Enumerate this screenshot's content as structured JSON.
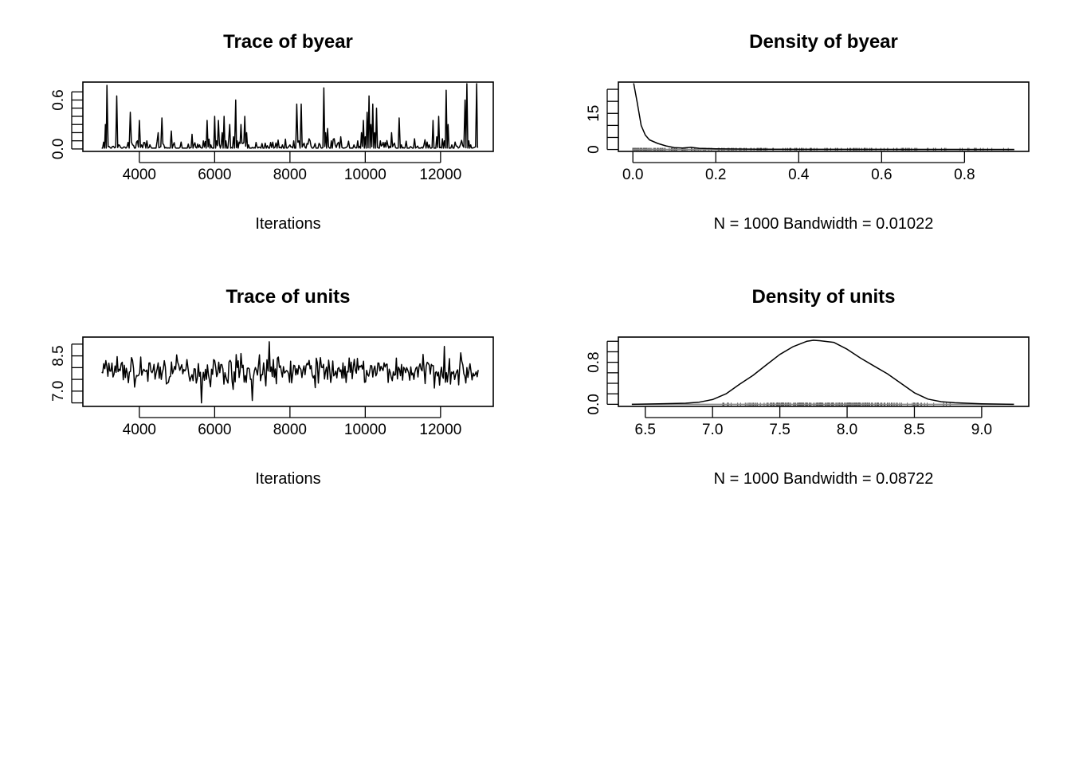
{
  "chart_data": [
    {
      "type": "line",
      "id": "trace-byear",
      "title": "Trace of byear",
      "xlabel": "Iterations",
      "ylabel": "",
      "xlim": [
        2500,
        13400
      ],
      "ylim": [
        -0.03,
        0.82
      ],
      "xticks": [
        4000,
        6000,
        8000,
        10000,
        12000
      ],
      "xtick_labels": [
        "4000",
        "6000",
        "8000",
        "10000",
        "12000"
      ],
      "yticks": [
        0.0,
        0.1,
        0.2,
        0.3,
        0.4,
        0.5,
        0.6,
        0.7
      ],
      "ytick_labels": [
        "0.0",
        "",
        "",
        "",
        "",
        "",
        "0.6",
        ""
      ],
      "grid": false,
      "series": [
        {
          "x": [
            3000,
            3100,
            3140,
            3200,
            3400,
            3450,
            3500,
            3700,
            3760,
            3820,
            3950,
            4000,
            4060,
            4200,
            4260,
            4300,
            4500,
            4540,
            4600,
            4650,
            4700,
            4850,
            4900,
            4950,
            5000,
            5300,
            5400,
            5450,
            5500,
            5600,
            5700,
            5800,
            5850,
            5900,
            6000,
            6050,
            6100,
            6200,
            6250,
            6300,
            6400,
            6500,
            6560,
            6600,
            6700,
            6800,
            6850,
            6900,
            7000,
            7100,
            7200,
            7400,
            7600,
            7800,
            7880,
            7950,
            8000,
            8100,
            8180,
            8240,
            8300,
            8350,
            8400,
            8800,
            8900,
            8950,
            9000,
            9100,
            9200,
            9350,
            9500,
            9700,
            9800,
            9900,
            9950,
            10000,
            10050,
            10100,
            10150,
            10200,
            10250,
            10300,
            10400,
            10500,
            10600,
            10700,
            10750,
            10800,
            10900,
            10960,
            11000,
            11200,
            11500,
            11700,
            11800,
            11900,
            11950,
            12000,
            12100,
            12150,
            12200,
            12300,
            12500,
            12650,
            12700,
            12750,
            12800,
            12900,
            12960,
            13000
          ],
          "y": [
            0.01,
            0.3,
            0.78,
            0.03,
            0.65,
            0.05,
            0.02,
            0.08,
            0.45,
            0.05,
            0.1,
            0.35,
            0.05,
            0.1,
            0.02,
            0.03,
            0.2,
            0.02,
            0.38,
            0.05,
            0.02,
            0.22,
            0.05,
            0.02,
            0.01,
            0.06,
            0.18,
            0.05,
            0.02,
            0.05,
            0.1,
            0.35,
            0.12,
            0.05,
            0.4,
            0.1,
            0.35,
            0.2,
            0.4,
            0.1,
            0.3,
            0.15,
            0.6,
            0.1,
            0.3,
            0.4,
            0.2,
            0.05,
            0.02,
            0.08,
            0.02,
            0.04,
            0.02,
            0.05,
            0.12,
            0.02,
            0.05,
            0.1,
            0.55,
            0.1,
            0.55,
            0.05,
            0.02,
            0.05,
            0.75,
            0.2,
            0.25,
            0.1,
            0.05,
            0.15,
            0.02,
            0.05,
            0.1,
            0.2,
            0.35,
            0.15,
            0.45,
            0.65,
            0.3,
            0.55,
            0.2,
            0.5,
            0.1,
            0.02,
            0.05,
            0.2,
            0.05,
            0.02,
            0.38,
            0.05,
            0.02,
            0.03,
            0.02,
            0.05,
            0.35,
            0.15,
            0.4,
            0.02,
            0.1,
            0.72,
            0.3,
            0.05,
            0.02,
            0.6,
            0.8,
            0.1,
            0.05,
            0.02,
            0.8,
            0.02
          ]
        }
      ]
    },
    {
      "type": "line",
      "id": "density-byear",
      "title": "Density of byear",
      "xlabel": "N = 1000   Bandwidth = 0.01022",
      "ylabel": "",
      "xlim": [
        -0.035,
        0.955
      ],
      "ylim": [
        -0.8,
        28
      ],
      "xticks": [
        0.0,
        0.2,
        0.4,
        0.6,
        0.8
      ],
      "xtick_labels": [
        "0.0",
        "0.2",
        "0.4",
        "0.6",
        "0.8"
      ],
      "yticks": [
        0,
        5,
        10,
        15,
        20,
        25
      ],
      "ytick_labels": [
        "0",
        "",
        "",
        "15",
        "",
        ""
      ],
      "grid": false,
      "series": [
        {
          "x": [
            0.002,
            0.01,
            0.02,
            0.03,
            0.04,
            0.06,
            0.08,
            0.1,
            0.12,
            0.14,
            0.16,
            0.2,
            0.3,
            0.5,
            0.7,
            0.92
          ],
          "y": [
            27.5,
            20,
            10,
            6,
            4,
            2.5,
            1.5,
            0.8,
            0.6,
            0.9,
            0.5,
            0.3,
            0.1,
            0.05,
            0.02,
            0.0
          ]
        }
      ],
      "rug": {
        "from": 0.0,
        "to": 0.92,
        "shown": true
      }
    },
    {
      "type": "line",
      "id": "trace-units",
      "title": "Trace of units",
      "xlabel": "Iterations",
      "ylabel": "",
      "xlim": [
        2500,
        13400
      ],
      "ylim": [
        6.35,
        9.3
      ],
      "xticks": [
        4000,
        6000,
        8000,
        10000,
        12000
      ],
      "xtick_labels": [
        "4000",
        "6000",
        "8000",
        "10000",
        "12000"
      ],
      "yticks": [
        6.5,
        7.0,
        7.5,
        8.0,
        8.5,
        9.0
      ],
      "ytick_labels": [
        "",
        "7.0",
        "",
        "",
        "8.5",
        ""
      ],
      "grid": false,
      "series": [
        {
          "x": [
            3000,
            3300,
            3600,
            3900,
            4200,
            4500,
            4800,
            5100,
            5400,
            5650,
            5700,
            6000,
            6300,
            6600,
            6700,
            6950,
            7000,
            7300,
            7450,
            7800,
            8100,
            8400,
            8700,
            9000,
            9300,
            9600,
            9900,
            10200,
            10500,
            10800,
            11100,
            11400,
            11700,
            12000,
            12100,
            12400,
            12700,
            13000
          ],
          "y": [
            7.8,
            7.6,
            8.1,
            7.5,
            7.9,
            8.2,
            7.6,
            8.0,
            7.7,
            6.5,
            7.8,
            8.3,
            7.6,
            8.0,
            8.6,
            7.5,
            6.6,
            8.2,
            9.1,
            7.6,
            8.1,
            7.7,
            8.4,
            7.5,
            8.0,
            7.8,
            8.1,
            7.6,
            8.2,
            7.7,
            8.0,
            7.6,
            8.1,
            7.8,
            8.9,
            7.7,
            8.0,
            7.9
          ]
        }
      ]
    },
    {
      "type": "line",
      "id": "density-units",
      "title": "Density of units",
      "xlabel": "N = 1000   Bandwidth = 0.08722",
      "ylabel": "",
      "xlim": [
        6.3,
        9.35
      ],
      "ylim": [
        -0.04,
        1.28
      ],
      "xticks": [
        6.5,
        7.0,
        7.5,
        8.0,
        8.5,
        9.0
      ],
      "xtick_labels": [
        "6.5",
        "7.0",
        "7.5",
        "8.0",
        "8.5",
        "9.0"
      ],
      "yticks": [
        0.0,
        0.2,
        0.4,
        0.6,
        0.8,
        1.0,
        1.2
      ],
      "ytick_labels": [
        "0.0",
        "",
        "",
        "",
        "0.8",
        "",
        ""
      ],
      "grid": false,
      "series": [
        {
          "x": [
            6.4,
            6.6,
            6.8,
            6.9,
            7.0,
            7.1,
            7.2,
            7.3,
            7.4,
            7.5,
            7.6,
            7.7,
            7.75,
            7.8,
            7.9,
            8.0,
            8.1,
            8.2,
            8.3,
            8.4,
            8.5,
            8.6,
            8.7,
            8.8,
            9.0,
            9.24
          ],
          "y": [
            0.0,
            0.01,
            0.02,
            0.04,
            0.09,
            0.2,
            0.38,
            0.55,
            0.75,
            0.95,
            1.1,
            1.2,
            1.22,
            1.21,
            1.18,
            1.05,
            0.88,
            0.73,
            0.58,
            0.4,
            0.22,
            0.1,
            0.05,
            0.03,
            0.01,
            0.0
          ]
        }
      ],
      "rug": {
        "from": 6.4,
        "to": 9.24,
        "shown": true
      }
    }
  ]
}
